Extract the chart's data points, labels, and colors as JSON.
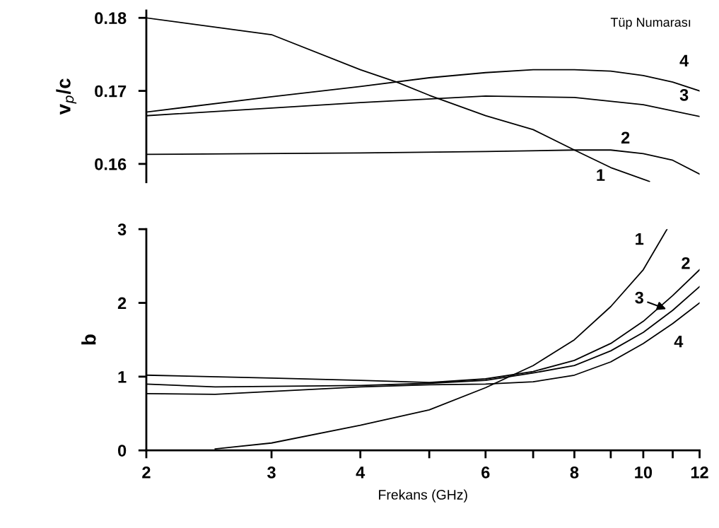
{
  "chart_data": [
    {
      "type": "line",
      "ylabel": "v$_{p}$/c",
      "xlim": [
        2,
        12
      ],
      "ylim": [
        0.1575,
        0.181
      ],
      "yticks": [
        0.16,
        0.17,
        0.18
      ],
      "log": "x",
      "tick_labels": "y",
      "grid": false,
      "series": [
        {
          "color": "#000000",
          "x": [
            2,
            3,
            4,
            4.5,
            5,
            6,
            7,
            8,
            9,
            10.2
          ],
          "values": [
            0.18,
            0.1777,
            0.1729,
            0.1712,
            0.1694,
            0.1666,
            0.1647,
            0.1619,
            0.1595,
            0.1576
          ]
        },
        {
          "color": "#000000",
          "x": [
            2,
            4,
            6,
            8,
            9,
            10,
            11,
            12
          ],
          "values": [
            0.1613,
            0.1615,
            0.1617,
            0.1619,
            0.1619,
            0.1614,
            0.1605,
            0.1586
          ]
        },
        {
          "color": "#000000",
          "x": [
            2,
            4,
            6,
            8,
            10,
            12
          ],
          "values": [
            0.1666,
            0.1684,
            0.1693,
            0.1691,
            0.1681,
            0.1665
          ]
        },
        {
          "color": "#000000",
          "x": [
            2,
            3,
            4,
            5,
            6,
            7,
            8,
            9,
            10,
            11,
            12
          ],
          "values": [
            0.1671,
            0.1692,
            0.1706,
            0.1718,
            0.1725,
            0.1729,
            0.1729,
            0.1727,
            0.1721,
            0.1712,
            0.17
          ]
        }
      ],
      "annotations": [
        "Tüp Numarası",
        "4",
        "3",
        "2",
        "1"
      ]
    },
    {
      "type": "line",
      "xlabel": "Frekans (GHz)",
      "ylabel": "b",
      "xlim": [
        2,
        12
      ],
      "ylim": [
        0,
        3
      ],
      "yticks": [
        0,
        1,
        2,
        3
      ],
      "log": "x",
      "grid": false,
      "xticks": [
        2,
        3,
        4,
        {
          "value": 5,
          "label": null
        },
        6,
        {
          "value": 7,
          "label": null
        },
        8,
        {
          "value": 9,
          "label": null
        },
        10,
        {
          "value": 11,
          "label": null
        },
        12
      ],
      "series": [
        {
          "color": "#000000",
          "x": [
            2.5,
            3,
            4,
            5,
            6,
            7,
            8,
            9,
            10,
            10.8
          ],
          "values": [
            0.02,
            0.1,
            0.34,
            0.55,
            0.85,
            1.15,
            1.5,
            1.95,
            2.45,
            3.0
          ]
        },
        {
          "color": "#000000",
          "x": [
            2,
            3,
            4,
            5,
            6,
            7,
            8,
            9,
            10,
            11,
            12
          ],
          "values": [
            1.02,
            0.98,
            0.95,
            0.92,
            0.97,
            1.07,
            1.22,
            1.45,
            1.75,
            2.1,
            2.45
          ]
        },
        {
          "color": "#000000",
          "x": [
            2,
            2.5,
            4,
            5,
            6,
            7,
            8,
            9,
            10,
            11,
            12
          ],
          "values": [
            0.9,
            0.86,
            0.88,
            0.91,
            0.95,
            1.05,
            1.15,
            1.35,
            1.6,
            1.9,
            2.22
          ]
        },
        {
          "color": "#000000",
          "x": [
            2,
            2.5,
            4,
            5,
            6,
            7,
            8,
            9,
            10,
            11,
            12
          ],
          "values": [
            0.77,
            0.76,
            0.86,
            0.89,
            0.9,
            0.93,
            1.02,
            1.2,
            1.45,
            1.72,
            2.0
          ]
        }
      ],
      "annotations": [
        "1",
        "2",
        "3",
        "4"
      ]
    }
  ]
}
